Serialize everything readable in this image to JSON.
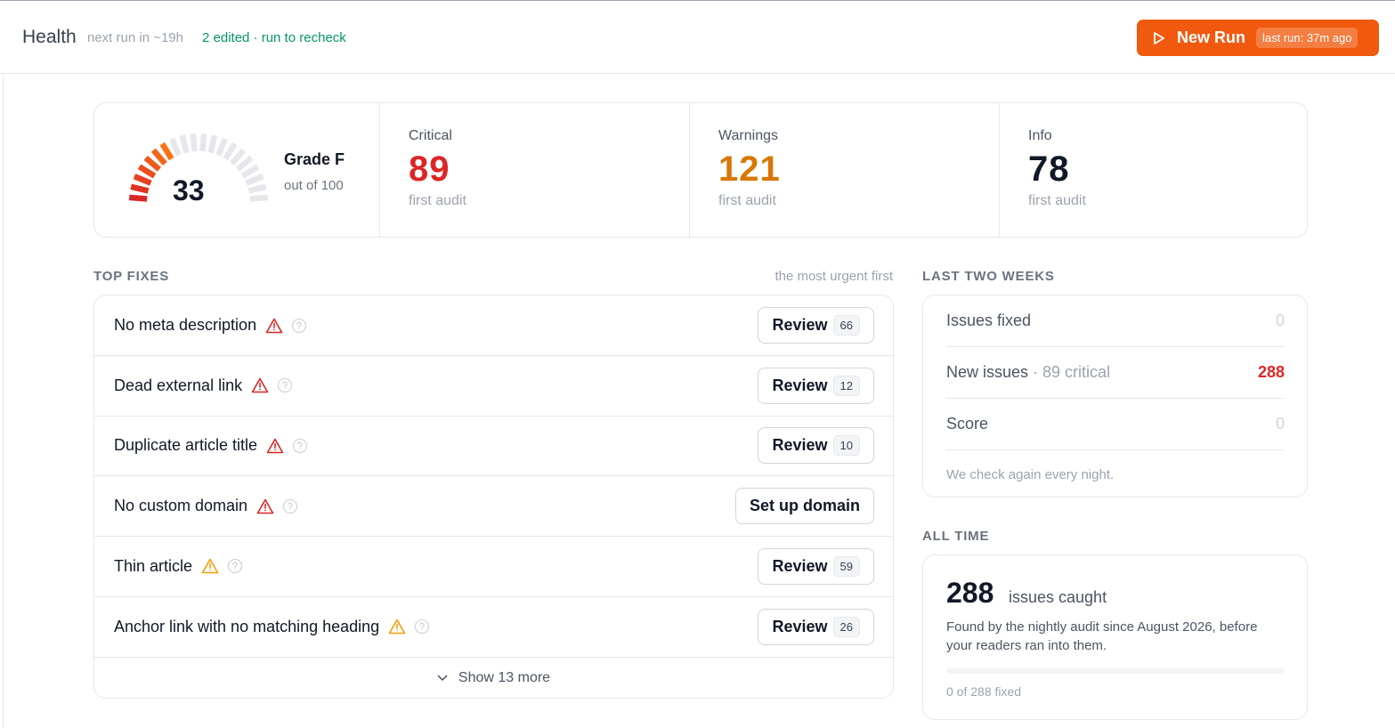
{
  "header": {
    "title": "Health",
    "next_run": "next run in ~19h",
    "edited": "2 edited · run to recheck",
    "button": {
      "label": "New Run",
      "badge": "last run: 37m ago"
    }
  },
  "score": {
    "value": 33,
    "max": 100,
    "grade": "Grade F",
    "out_of": "out of 100"
  },
  "stats": [
    {
      "label": "Critical",
      "value": 89,
      "note": "first audit",
      "color": "#dc2626"
    },
    {
      "label": "Warnings",
      "value": 121,
      "note": "first audit",
      "color": "#d97706"
    },
    {
      "label": "Info",
      "value": 78,
      "note": "first audit",
      "color": "#111827"
    }
  ],
  "top_fixes": {
    "title": "TOP FIXES",
    "subtitle": "the most urgent first",
    "items": [
      {
        "name": "No meta description",
        "severity": "critical",
        "action": "Review",
        "count": 66
      },
      {
        "name": "Dead external link",
        "severity": "critical",
        "action": "Review",
        "count": 12
      },
      {
        "name": "Duplicate article title",
        "severity": "critical",
        "action": "Review",
        "count": 10
      },
      {
        "name": "No custom domain",
        "severity": "critical",
        "action": "Set up domain"
      },
      {
        "name": "Thin article",
        "severity": "warning",
        "action": "Review",
        "count": 59
      },
      {
        "name": "Anchor link with no matching heading",
        "severity": "warning",
        "action": "Review",
        "count": 26
      }
    ],
    "more": "Show 13 more"
  },
  "last_two_weeks": {
    "title": "LAST TWO WEEKS",
    "rows": [
      {
        "label": "Issues fixed",
        "value": 0
      },
      {
        "label": "New issues",
        "detail": "· 89 critical",
        "value": 288,
        "color": "#dc2626"
      },
      {
        "label": "Score",
        "value": 0
      }
    ],
    "note": "We check again every night."
  },
  "all_time": {
    "title": "ALL TIME",
    "count": 288,
    "unit": "issues caught",
    "text": "Found by the nightly audit since August 2026, before your readers ran into them.",
    "progress": {
      "fixed": 0,
      "total": 288,
      "label": "0 of 288 fixed"
    }
  }
}
